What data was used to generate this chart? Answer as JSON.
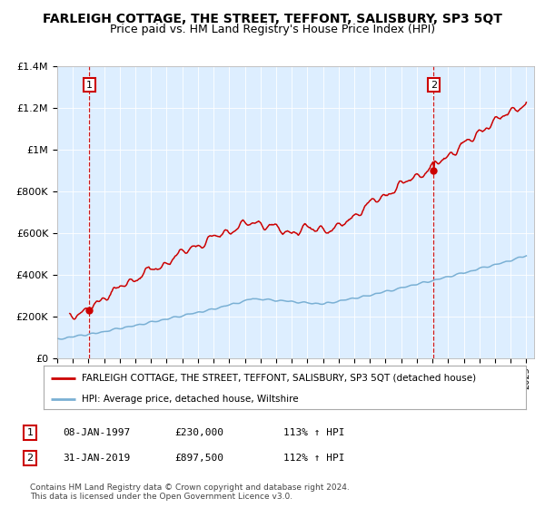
{
  "title": "FARLEIGH COTTAGE, THE STREET, TEFFONT, SALISBURY, SP3 5QT",
  "subtitle": "Price paid vs. HM Land Registry's House Price Index (HPI)",
  "title_fontsize": 10,
  "subtitle_fontsize": 9,
  "property_label": "FARLEIGH COTTAGE, THE STREET, TEFFONT, SALISBURY, SP3 5QT (detached house)",
  "hpi_label": "HPI: Average price, detached house, Wiltshire",
  "property_color": "#cc0000",
  "hpi_color": "#7ab0d4",
  "sale1_date": 1997.05,
  "sale1_price": 230000,
  "sale1_label": "1",
  "sale2_date": 2019.08,
  "sale2_price": 897500,
  "sale2_label": "2",
  "xmin": 1995.0,
  "xmax": 2025.5,
  "ymin": 0,
  "ymax": 1400000,
  "yticks": [
    0,
    200000,
    400000,
    600000,
    800000,
    1000000,
    1200000,
    1400000
  ],
  "ytick_labels": [
    "£0",
    "£200K",
    "£400K",
    "£600K",
    "£800K",
    "£1M",
    "£1.2M",
    "£1.4M"
  ],
  "footer_line1": "Contains HM Land Registry data © Crown copyright and database right 2024.",
  "footer_line2": "This data is licensed under the Open Government Licence v3.0.",
  "table_row1": [
    "1",
    "08-JAN-1997",
    "£230,000",
    "113% ↑ HPI"
  ],
  "table_row2": [
    "2",
    "31-JAN-2019",
    "£897,500",
    "112% ↑ HPI"
  ],
  "plot_bg_color": "#ddeeff"
}
